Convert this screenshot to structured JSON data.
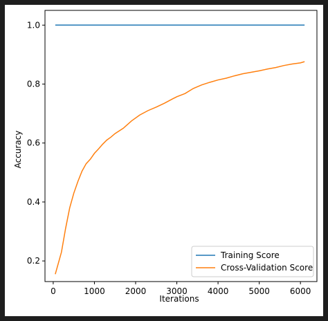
{
  "chart_data": {
    "type": "line",
    "title": "",
    "xlabel": "Iterations",
    "ylabel": "Accuracy",
    "xlim": [
      -200,
      6400
    ],
    "ylim": [
      0.13,
      1.05
    ],
    "xticks": [
      0,
      1000,
      2000,
      3000,
      4000,
      5000,
      6000
    ],
    "xtick_labels": [
      "0",
      "1000",
      "2000",
      "3000",
      "4000",
      "5000",
      "6000"
    ],
    "yticks": [
      0.2,
      0.4,
      0.6,
      0.8,
      1.0
    ],
    "ytick_labels": [
      "0.2",
      "0.4",
      "0.6",
      "0.8",
      "1.0"
    ],
    "grid": false,
    "legend_position": "lower-right",
    "series": [
      {
        "name": "Training Score",
        "color": "#1f77b4",
        "x": [
          50,
          6100
        ],
        "y": [
          1.0,
          1.0
        ]
      },
      {
        "name": "Cross-Validation Score",
        "color": "#ff7f0e",
        "x": [
          50,
          200,
          300,
          400,
          500,
          600,
          700,
          800,
          900,
          1000,
          1100,
          1200,
          1300,
          1400,
          1500,
          1700,
          1900,
          2100,
          2300,
          2500,
          2700,
          2900,
          3000,
          3200,
          3400,
          3600,
          3800,
          4000,
          4200,
          4400,
          4600,
          4800,
          5000,
          5200,
          5400,
          5600,
          5800,
          6000,
          6100
        ],
        "y": [
          0.155,
          0.23,
          0.31,
          0.38,
          0.43,
          0.47,
          0.505,
          0.53,
          0.545,
          0.565,
          0.58,
          0.596,
          0.61,
          0.62,
          0.632,
          0.65,
          0.675,
          0.695,
          0.71,
          0.722,
          0.735,
          0.75,
          0.757,
          0.768,
          0.785,
          0.797,
          0.806,
          0.814,
          0.82,
          0.828,
          0.835,
          0.84,
          0.845,
          0.851,
          0.856,
          0.863,
          0.868,
          0.872,
          0.876
        ]
      }
    ]
  }
}
